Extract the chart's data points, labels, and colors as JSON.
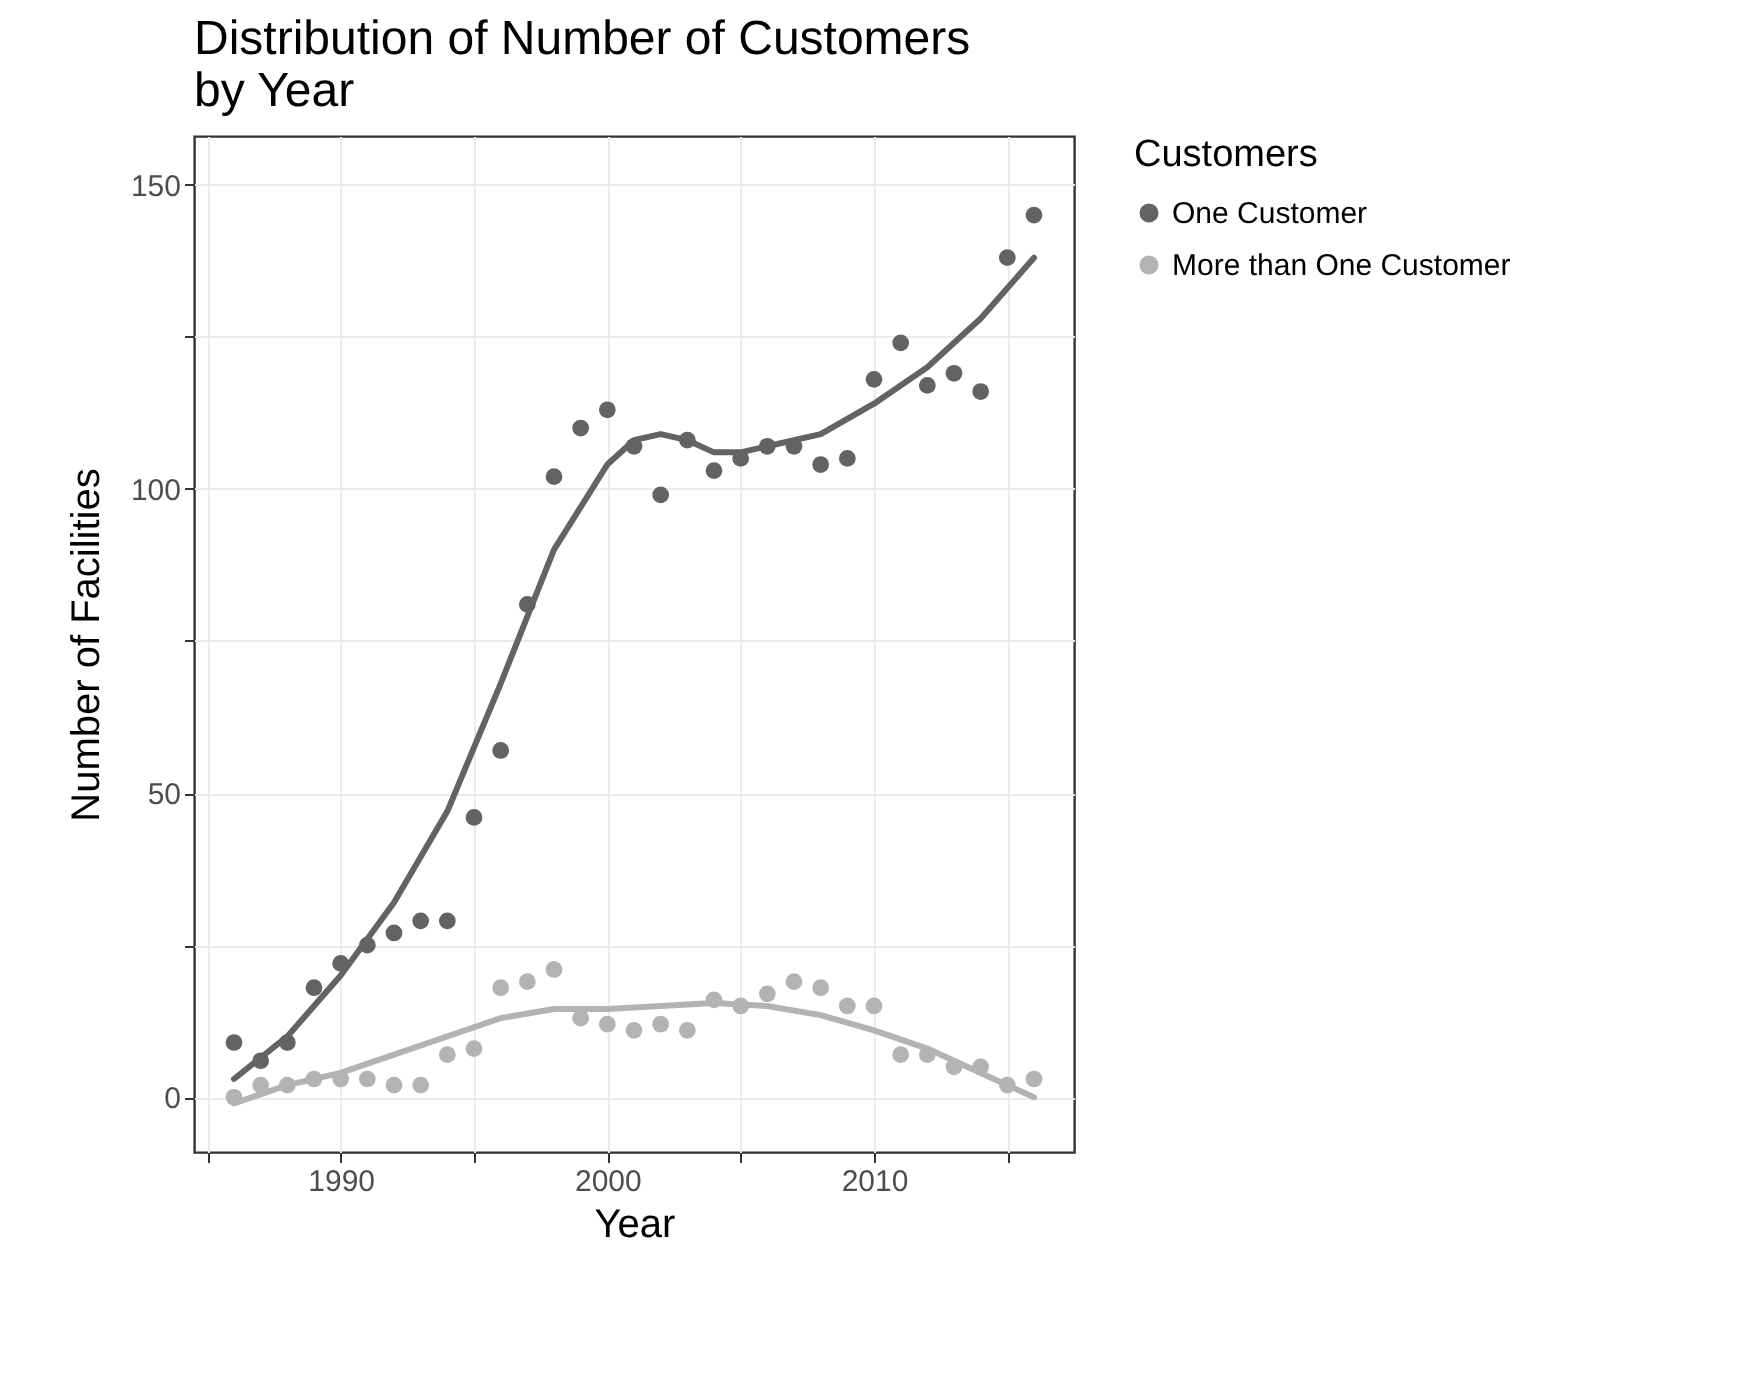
{
  "chart_data": {
    "type": "scatter",
    "title": "Distribution of Number of Customers\n by Year",
    "xlabel": "Year",
    "ylabel": "Number of Facilities",
    "legend_title": "Customers",
    "legend": "right",
    "grid": true,
    "marker": "circle",
    "x": [
      1986,
      1987,
      1988,
      1989,
      1990,
      1991,
      1992,
      1993,
      1994,
      1995,
      1996,
      1997,
      1998,
      1999,
      2000,
      2001,
      2002,
      2003,
      2004,
      2005,
      2006,
      2007,
      2008,
      2009,
      2010,
      2011,
      2012,
      2013,
      2014,
      2015,
      2016
    ],
    "xlim": [
      1984.5,
      2017.5
    ],
    "xticks": [
      {
        "value": 1985,
        "label": null
      },
      1990,
      {
        "value": 1995,
        "label": null
      },
      2000,
      {
        "value": 2005,
        "label": null
      },
      2010,
      {
        "value": 2015,
        "label": null
      }
    ],
    "ylim": [
      -9,
      158
    ],
    "yticks": [
      0,
      {
        "value": 25,
        "label": null
      },
      50,
      {
        "value": 75,
        "label": null
      },
      100,
      {
        "value": 125,
        "label": null
      },
      150
    ],
    "series": [
      {
        "name": "One Customer",
        "color": "#636363",
        "values": [
          9,
          6,
          9,
          18,
          22,
          25,
          27,
          29,
          29,
          46,
          57,
          81,
          102,
          110,
          113,
          107,
          99,
          108,
          103,
          105,
          107,
          107,
          104,
          105,
          118,
          124,
          117,
          119,
          116,
          138,
          145
        ]
      },
      {
        "name": "More than One Customer",
        "color": "#b3b3b3",
        "values": [
          0,
          2,
          2,
          3,
          3,
          3,
          2,
          2,
          7,
          8,
          18,
          19,
          21,
          13,
          12,
          11,
          12,
          11,
          16,
          15,
          17,
          19,
          18,
          15,
          15,
          7,
          7,
          5,
          5,
          2,
          3
        ]
      },
      {
        "type": "line",
        "marker": "none",
        "color": "#636363",
        "x": [
          1986,
          1988,
          1990,
          1992,
          1994,
          1996,
          1998,
          2000,
          2001,
          2002,
          2003,
          2004,
          2005,
          2006,
          2008,
          2010,
          2012,
          2014,
          2016
        ],
        "values": [
          3,
          10,
          20,
          32,
          47,
          68,
          90,
          104,
          108,
          109,
          108,
          106,
          106,
          107,
          109,
          114,
          120,
          128,
          138
        ]
      },
      {
        "type": "line",
        "marker": "none",
        "color": "#b3b3b3",
        "x": [
          1986,
          1988,
          1990,
          1992,
          1994,
          1996,
          1998,
          2000,
          2002,
          2004,
          2006,
          2008,
          2010,
          2012,
          2014,
          2016
        ],
        "values": [
          -1,
          2,
          4,
          7,
          10,
          13,
          14.5,
          14.5,
          15,
          15.5,
          15,
          13.5,
          11,
          8,
          4,
          0
        ]
      }
    ]
  }
}
